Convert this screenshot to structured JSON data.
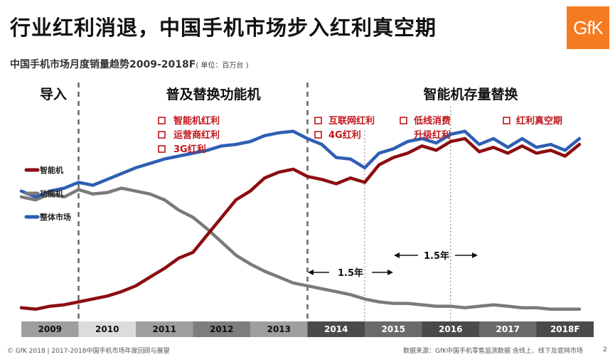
{
  "header": {
    "title": "行业红利消退，中国手机市场步入红利真空期",
    "logo_text": "GfK"
  },
  "chart_data": {
    "type": "line",
    "title": "中国手机市场月度销量趋势2009-2018F",
    "unit": "( 单位：百万台 )",
    "x_categories": [
      "2009",
      "2010",
      "2011",
      "2012",
      "2013",
      "2014",
      "2015",
      "2016",
      "2017",
      "2018F"
    ],
    "phases": [
      {
        "label": "导入"
      },
      {
        "label": "普及替换功能机"
      },
      {
        "label": "智能机存量替换"
      }
    ],
    "drivers": [
      {
        "lines": [
          "智能机红利",
          "运营商红利",
          "3G红利"
        ]
      },
      {
        "lines": [
          "互联网红利",
          "4G红利"
        ]
      },
      {
        "lines": [
          "低线消费",
          "升级红利"
        ]
      },
      {
        "lines": [
          "红利真空期"
        ]
      }
    ],
    "intervals": [
      "1.5年",
      "1.5年"
    ],
    "grid": false,
    "legend_position": "left",
    "series": [
      {
        "name": "智能机",
        "color": "#8b0d10",
        "points": [
          [
            2009.0,
            0.06
          ],
          [
            2009.25,
            0.05
          ],
          [
            2009.5,
            0.07
          ],
          [
            2009.75,
            0.08
          ],
          [
            2010.0,
            0.1
          ],
          [
            2010.25,
            0.12
          ],
          [
            2010.5,
            0.14
          ],
          [
            2010.75,
            0.17
          ],
          [
            2011.0,
            0.21
          ],
          [
            2011.25,
            0.27
          ],
          [
            2011.5,
            0.33
          ],
          [
            2011.75,
            0.4
          ],
          [
            2012.0,
            0.44
          ],
          [
            2012.25,
            0.56
          ],
          [
            2012.5,
            0.68
          ],
          [
            2012.75,
            0.8
          ],
          [
            2013.0,
            0.86
          ],
          [
            2013.25,
            0.95
          ],
          [
            2013.5,
            0.99
          ],
          [
            2013.75,
            1.01
          ],
          [
            2014.0,
            0.96
          ],
          [
            2014.25,
            0.94
          ],
          [
            2014.5,
            0.91
          ],
          [
            2014.75,
            0.95
          ],
          [
            2015.0,
            0.92
          ],
          [
            2015.25,
            1.04
          ],
          [
            2015.5,
            1.09
          ],
          [
            2015.75,
            1.12
          ],
          [
            2016.0,
            1.17
          ],
          [
            2016.25,
            1.14
          ],
          [
            2016.5,
            1.2
          ],
          [
            2016.75,
            1.22
          ],
          [
            2017.0,
            1.13
          ],
          [
            2017.25,
            1.16
          ],
          [
            2017.5,
            1.12
          ],
          [
            2017.75,
            1.17
          ],
          [
            2018.0,
            1.12
          ],
          [
            2018.25,
            1.14
          ],
          [
            2018.5,
            1.1
          ],
          [
            2018.75,
            1.18
          ]
        ]
      },
      {
        "name": "功能机",
        "color": "#7a7a7a",
        "points": [
          [
            2009.0,
            0.82
          ],
          [
            2009.25,
            0.8
          ],
          [
            2009.5,
            0.84
          ],
          [
            2009.75,
            0.82
          ],
          [
            2010.0,
            0.87
          ],
          [
            2010.25,
            0.84
          ],
          [
            2010.5,
            0.85
          ],
          [
            2010.75,
            0.88
          ],
          [
            2011.0,
            0.86
          ],
          [
            2011.25,
            0.84
          ],
          [
            2011.5,
            0.8
          ],
          [
            2011.75,
            0.73
          ],
          [
            2012.0,
            0.68
          ],
          [
            2012.25,
            0.6
          ],
          [
            2012.5,
            0.51
          ],
          [
            2012.75,
            0.42
          ],
          [
            2013.0,
            0.36
          ],
          [
            2013.25,
            0.31
          ],
          [
            2013.5,
            0.27
          ],
          [
            2013.75,
            0.23
          ],
          [
            2014.0,
            0.21
          ],
          [
            2014.25,
            0.19
          ],
          [
            2014.5,
            0.17
          ],
          [
            2014.75,
            0.15
          ],
          [
            2015.0,
            0.12
          ],
          [
            2015.25,
            0.1
          ],
          [
            2015.5,
            0.09
          ],
          [
            2015.75,
            0.09
          ],
          [
            2016.0,
            0.08
          ],
          [
            2016.25,
            0.07
          ],
          [
            2016.5,
            0.07
          ],
          [
            2016.75,
            0.06
          ],
          [
            2017.0,
            0.07
          ],
          [
            2017.25,
            0.08
          ],
          [
            2017.5,
            0.07
          ],
          [
            2017.75,
            0.06
          ],
          [
            2018.0,
            0.06
          ],
          [
            2018.25,
            0.05
          ],
          [
            2018.5,
            0.05
          ],
          [
            2018.75,
            0.05
          ]
        ]
      },
      {
        "name": "整体市场",
        "color": "#2f5fb3",
        "points": [
          [
            2009.0,
            0.86
          ],
          [
            2009.25,
            0.82
          ],
          [
            2009.5,
            0.86
          ],
          [
            2009.75,
            0.88
          ],
          [
            2010.0,
            0.92
          ],
          [
            2010.25,
            0.9
          ],
          [
            2010.5,
            0.94
          ],
          [
            2010.75,
            0.98
          ],
          [
            2011.0,
            1.02
          ],
          [
            2011.25,
            1.05
          ],
          [
            2011.5,
            1.08
          ],
          [
            2011.75,
            1.1
          ],
          [
            2012.0,
            1.12
          ],
          [
            2012.25,
            1.14
          ],
          [
            2012.5,
            1.17
          ],
          [
            2012.75,
            1.18
          ],
          [
            2013.0,
            1.2
          ],
          [
            2013.25,
            1.24
          ],
          [
            2013.5,
            1.26
          ],
          [
            2013.75,
            1.27
          ],
          [
            2014.0,
            1.22
          ],
          [
            2014.25,
            1.18
          ],
          [
            2014.5,
            1.09
          ],
          [
            2014.75,
            1.08
          ],
          [
            2015.0,
            1.02
          ],
          [
            2015.25,
            1.12
          ],
          [
            2015.5,
            1.15
          ],
          [
            2015.75,
            1.2
          ],
          [
            2016.0,
            1.22
          ],
          [
            2016.25,
            1.19
          ],
          [
            2016.5,
            1.25
          ],
          [
            2016.75,
            1.27
          ],
          [
            2017.0,
            1.18
          ],
          [
            2017.25,
            1.22
          ],
          [
            2017.5,
            1.16
          ],
          [
            2017.75,
            1.22
          ],
          [
            2018.0,
            1.16
          ],
          [
            2018.25,
            1.18
          ],
          [
            2018.5,
            1.14
          ],
          [
            2018.75,
            1.22
          ]
        ]
      }
    ]
  },
  "footer": {
    "copyright": "© GfK 2018 | 2017-2018中国手机市场年度回顾与展望",
    "source": "数据来源：GfK中国手机零售监测数据 含线上、线下及官网市场",
    "page": "2"
  }
}
